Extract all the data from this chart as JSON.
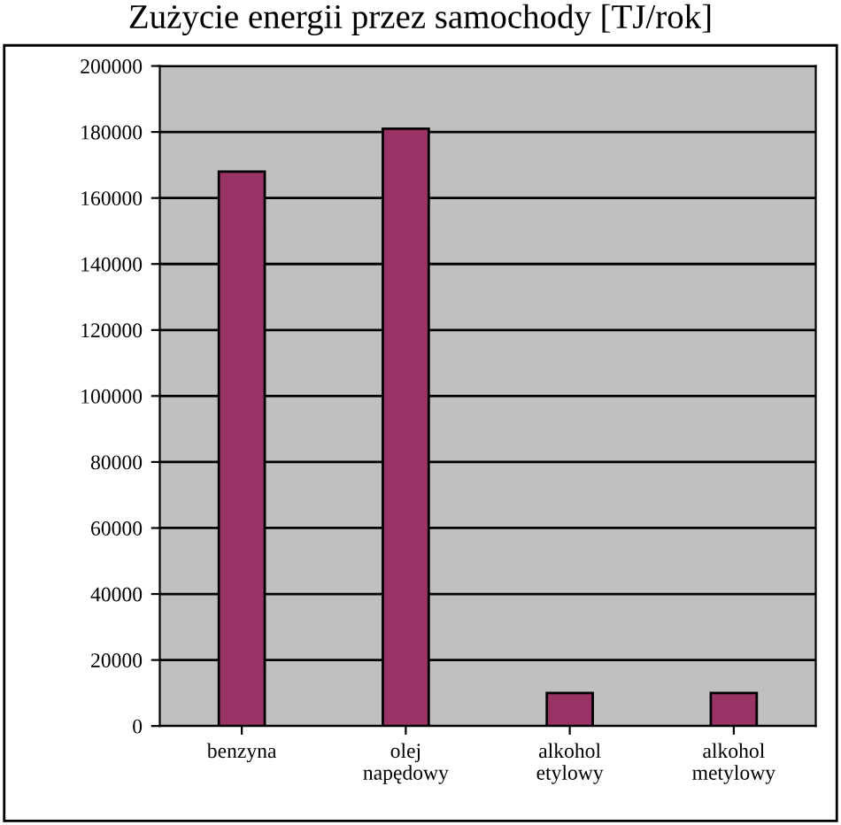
{
  "chart_data": {
    "type": "bar",
    "title": "Zużycie energii przez samochody [TJ/rok]",
    "categories": [
      "benzyna",
      "olej\nnapędowy",
      "alkohol\netylowy",
      "alkohol\nmetylowy"
    ],
    "values": [
      168000,
      181000,
      10000,
      10000
    ],
    "color": "#993366",
    "ylim": [
      0,
      200000
    ],
    "yticks": [
      0,
      20000,
      40000,
      60000,
      80000,
      100000,
      120000,
      140000,
      160000,
      180000,
      200000
    ],
    "grid": "y"
  }
}
